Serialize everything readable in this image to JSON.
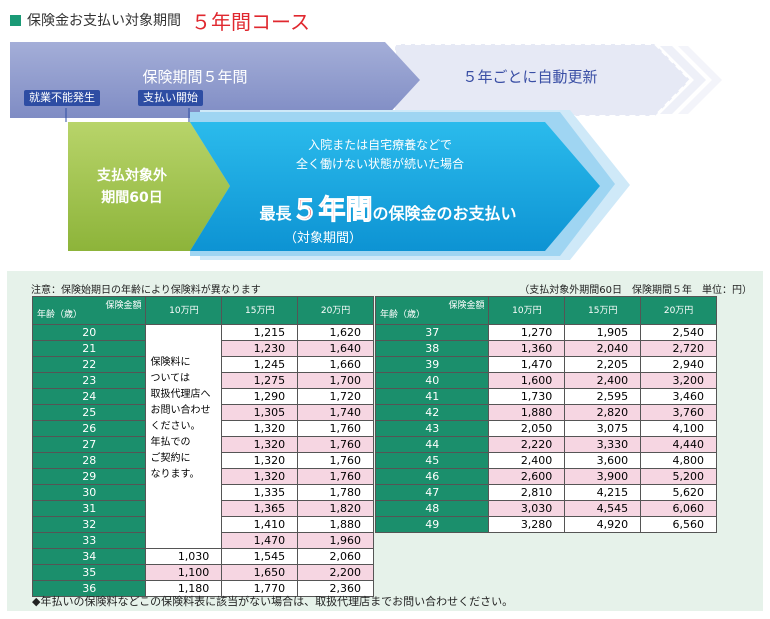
{
  "header": {
    "title": "保険金お支払い対象期間",
    "highlight": "５年間コース"
  },
  "diagram": {
    "period_label": "保険期間５年間",
    "renew_label": "５年ごとに自動更新",
    "tag1": "就業不能発生",
    "tag2": "支払い開始",
    "nonpay_line1": "支払対象外",
    "nonpay_line2": "期間60日",
    "cond_line1": "入院または自宅療養などで",
    "cond_line2": "全く働けない状態が続いた場合",
    "pay_prefix": "最長",
    "pay_big": "５年間",
    "pay_suffix": "の保険金のお支払い",
    "pay_sub": "（対象期間）"
  },
  "table": {
    "note_left": "注意：保険始期日の年齢により保険料が異なります",
    "note_right": "（支払対象外期間60日　保険期間５年　単位：円）",
    "hdr_amount": "保険金額",
    "hdr_age": "年齢（歳）",
    "cols": [
      "10万円",
      "15万円",
      "20万円"
    ],
    "left_note": [
      "保険料に",
      "ついては",
      "取扱代理店へ",
      "お問い合わせ",
      "ください。",
      "年払での",
      "ご契約に",
      "なります。"
    ],
    "left_rows": [
      {
        "age": "20",
        "v10": "",
        "v15": "1,215",
        "v20": "1,620"
      },
      {
        "age": "21",
        "v10": "",
        "v15": "1,230",
        "v20": "1,640"
      },
      {
        "age": "22",
        "v10": "",
        "v15": "1,245",
        "v20": "1,660"
      },
      {
        "age": "23",
        "v10": "",
        "v15": "1,275",
        "v20": "1,700"
      },
      {
        "age": "24",
        "v10": "",
        "v15": "1,290",
        "v20": "1,720"
      },
      {
        "age": "25",
        "v10": "",
        "v15": "1,305",
        "v20": "1,740"
      },
      {
        "age": "26",
        "v10": "",
        "v15": "1,320",
        "v20": "1,760"
      },
      {
        "age": "27",
        "v10": "",
        "v15": "1,320",
        "v20": "1,760"
      },
      {
        "age": "28",
        "v10": "",
        "v15": "1,320",
        "v20": "1,760"
      },
      {
        "age": "29",
        "v10": "",
        "v15": "1,320",
        "v20": "1,760"
      },
      {
        "age": "30",
        "v10": "",
        "v15": "1,335",
        "v20": "1,780"
      },
      {
        "age": "31",
        "v10": "",
        "v15": "1,365",
        "v20": "1,820"
      },
      {
        "age": "32",
        "v10": "",
        "v15": "1,410",
        "v20": "1,880"
      },
      {
        "age": "33",
        "v10": "",
        "v15": "1,470",
        "v20": "1,960"
      },
      {
        "age": "34",
        "v10": "1,030",
        "v15": "1,545",
        "v20": "2,060"
      },
      {
        "age": "35",
        "v10": "1,100",
        "v15": "1,650",
        "v20": "2,200"
      },
      {
        "age": "36",
        "v10": "1,180",
        "v15": "1,770",
        "v20": "2,360"
      }
    ],
    "right_rows": [
      {
        "age": "37",
        "v10": "1,270",
        "v15": "1,905",
        "v20": "2,540"
      },
      {
        "age": "38",
        "v10": "1,360",
        "v15": "2,040",
        "v20": "2,720"
      },
      {
        "age": "39",
        "v10": "1,470",
        "v15": "2,205",
        "v20": "2,940"
      },
      {
        "age": "40",
        "v10": "1,600",
        "v15": "2,400",
        "v20": "3,200"
      },
      {
        "age": "41",
        "v10": "1,730",
        "v15": "2,595",
        "v20": "3,460"
      },
      {
        "age": "42",
        "v10": "1,880",
        "v15": "2,820",
        "v20": "3,760"
      },
      {
        "age": "43",
        "v10": "2,050",
        "v15": "3,075",
        "v20": "4,100"
      },
      {
        "age": "44",
        "v10": "2,220",
        "v15": "3,330",
        "v20": "4,440"
      },
      {
        "age": "45",
        "v10": "2,400",
        "v15": "3,600",
        "v20": "4,800"
      },
      {
        "age": "46",
        "v10": "2,600",
        "v15": "3,900",
        "v20": "5,200"
      },
      {
        "age": "47",
        "v10": "2,810",
        "v15": "4,215",
        "v20": "5,620"
      },
      {
        "age": "48",
        "v10": "3,030",
        "v15": "4,545",
        "v20": "6,060"
      },
      {
        "age": "49",
        "v10": "3,280",
        "v15": "4,920",
        "v20": "6,560"
      }
    ],
    "footnote": "◆年払いの保険料などこの保険料表に該当がない場合は、取扱代理店までお問い合わせください。"
  }
}
